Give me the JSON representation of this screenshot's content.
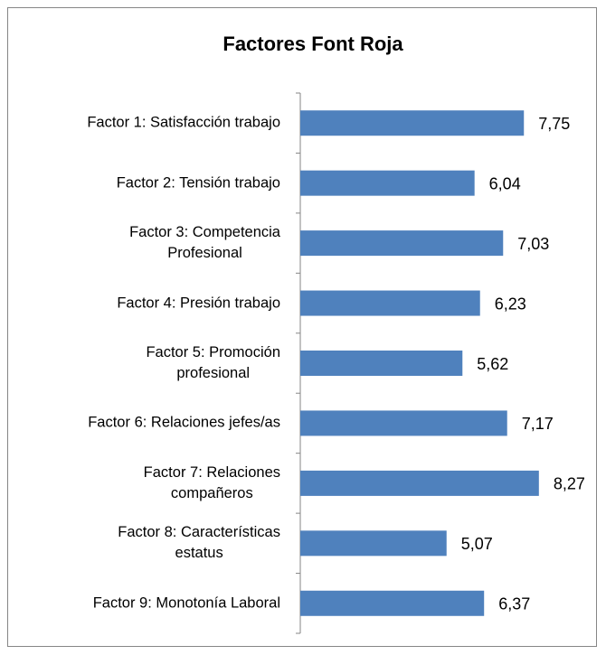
{
  "chart_data": {
    "type": "bar",
    "orientation": "horizontal",
    "title": "Factores Font Roja",
    "categories": [
      "Factor 1: Satisfacción trabajo",
      "Factor 2: Tensión trabajo",
      "Factor 3: Competencia\nProfesional",
      "Factor 4: Presión  trabajo",
      "Factor 5: Promoción\nprofesional",
      "Factor 6: Relaciones jefes/as",
      "Factor 7: Relaciones\ncompañeros",
      "Factor 8: Características\nestatus",
      "Factor 9: Monotonía Laboral"
    ],
    "values": [
      7.75,
      6.04,
      7.03,
      6.23,
      5.62,
      7.17,
      8.27,
      5.07,
      6.37
    ],
    "value_labels": [
      "7,75",
      "6,04",
      "7,03",
      "6,23",
      "5,62",
      "7,17",
      "8,27",
      "5,07",
      "6,37"
    ],
    "color": "#4f81bd",
    "xlim": [
      0,
      10
    ]
  }
}
